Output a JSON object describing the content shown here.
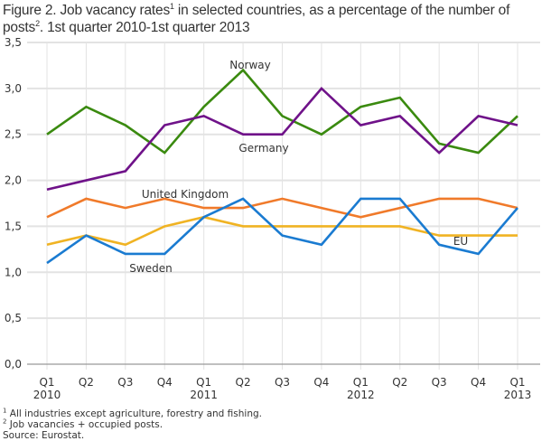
{
  "chart_data": {
    "type": "line",
    "title": "Figure 2. Job vacancy rates",
    "title_sup1": "1",
    "title_mid": " in selected countries, as a percentage of the number of posts",
    "title_sup2": "2",
    "title_end": ". 1st quarter 2010-1st quarter 2013",
    "categories": [
      "Q1\n2010",
      "Q2",
      "Q3",
      "Q4",
      "Q1\n2011",
      "Q2",
      "Q3",
      "Q4",
      "Q1\n2012",
      "Q2",
      "Q3",
      "Q4",
      "Q1\n2013"
    ],
    "yticks": [
      "0,0",
      "0,5",
      "1,0",
      "1,5",
      "2,0",
      "2,5",
      "3,0",
      "3,5"
    ],
    "ylim": [
      0,
      3.5
    ],
    "grid": true,
    "series": [
      {
        "name": "Norway",
        "color": "#3a8a0f",
        "values": [
          2.5,
          2.8,
          2.6,
          2.3,
          2.8,
          3.2,
          2.7,
          2.5,
          2.8,
          2.9,
          2.4,
          2.3,
          2.7
        ]
      },
      {
        "name": "Germany",
        "color": "#6f1289",
        "values": [
          1.9,
          2.0,
          2.1,
          2.6,
          2.7,
          2.5,
          2.5,
          3.0,
          2.6,
          2.7,
          2.3,
          2.7,
          2.6
        ]
      },
      {
        "name": "United Kingdom",
        "color": "#f07a2a",
        "values": [
          1.6,
          1.8,
          1.7,
          1.8,
          1.7,
          1.7,
          1.8,
          1.7,
          1.6,
          1.7,
          1.8,
          1.8,
          1.7
        ]
      },
      {
        "name": "EU",
        "color": "#f0b323",
        "values": [
          1.3,
          1.4,
          1.3,
          1.5,
          1.6,
          1.5,
          1.5,
          1.5,
          1.5,
          1.5,
          1.4,
          1.4,
          1.4
        ]
      },
      {
        "name": "Sweden",
        "color": "#1a7bd1",
        "values": [
          1.1,
          1.4,
          1.2,
          1.2,
          1.6,
          1.8,
          1.4,
          1.3,
          1.8,
          1.8,
          1.3,
          1.2,
          1.7
        ]
      }
    ]
  },
  "notes": {
    "n1_sup": "1",
    "n1": " All industries except agriculture, forestry and fishing.",
    "n2_sup": "2",
    "n2": " Job vacancies + occupied posts.",
    "source": "Source: Eurostat."
  }
}
